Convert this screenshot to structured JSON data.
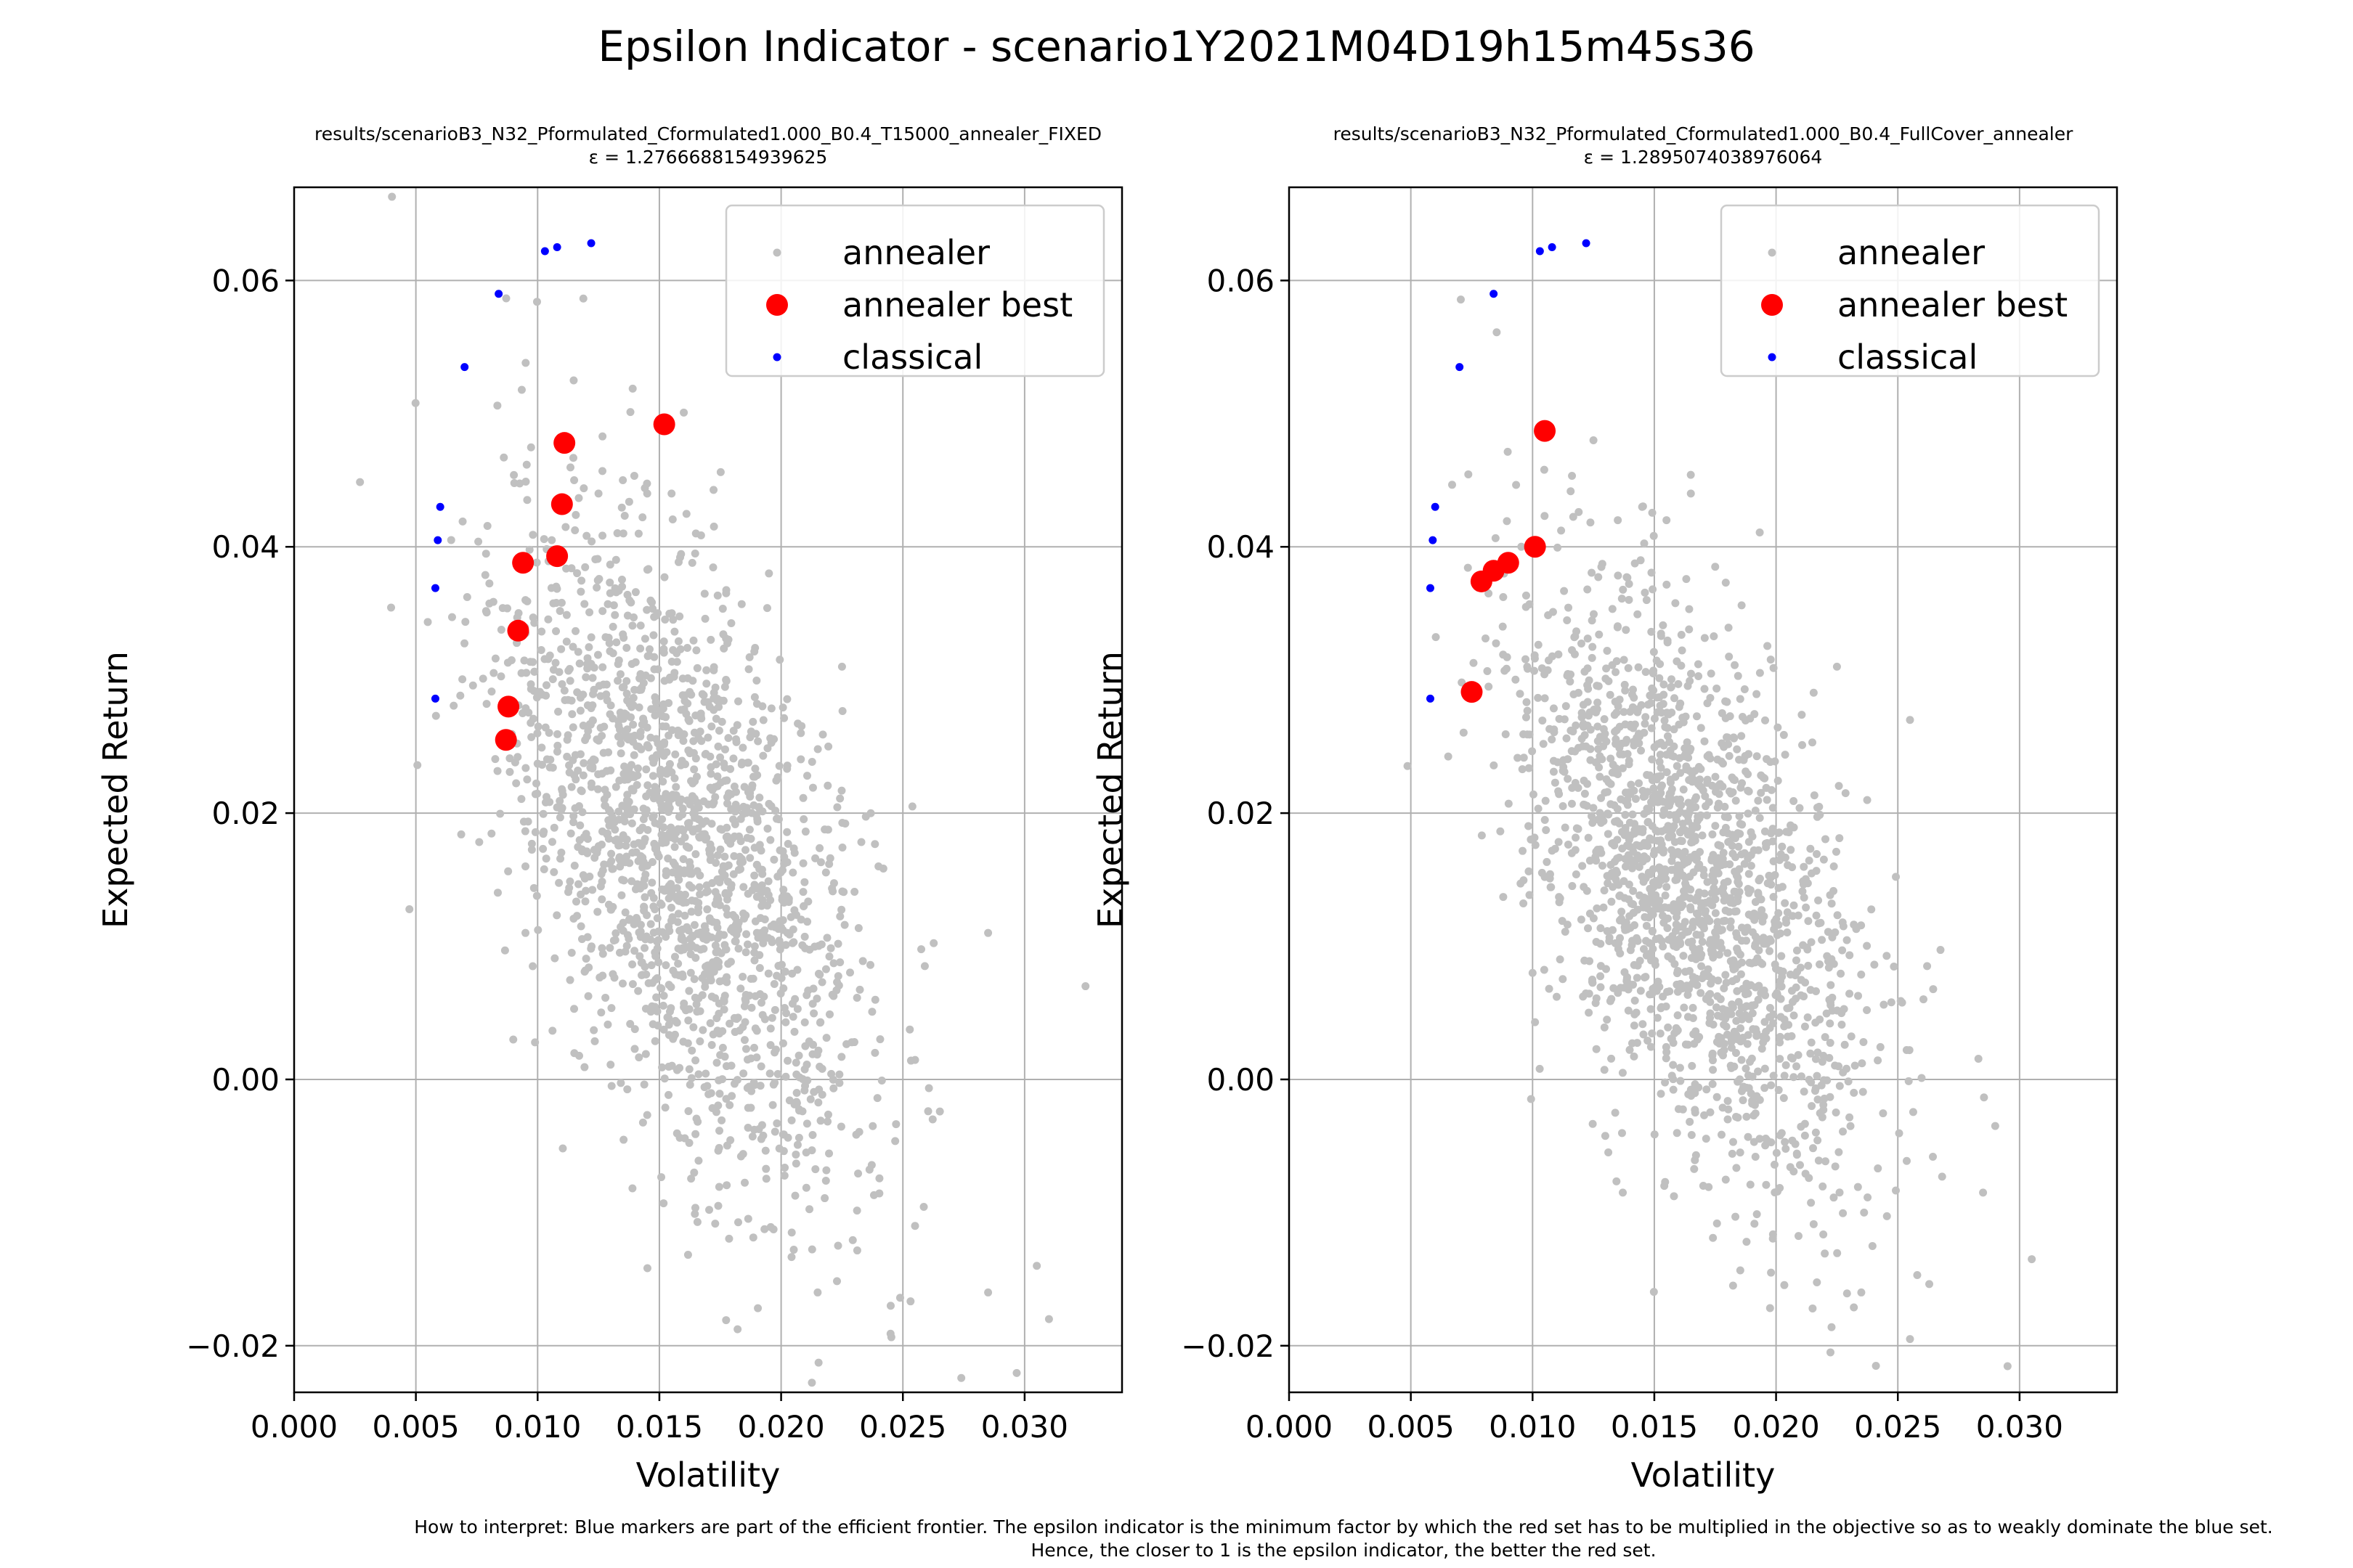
{
  "figure": {
    "title": "Epsilon Indicator - scenario1Y2021M04D19h15m45s36",
    "footnote_line1": "How to interpret: Blue markers are part of the efficient frontier. The epsilon indicator is the minimum factor by which the red set has to be multiplied in the objective so as to weakly dominate the blue set.",
    "footnote_line2": "Hence, the closer to 1 is the epsilon indicator, the better the red set."
  },
  "colors": {
    "annealer": "#c0c0c0",
    "annealer_best": "#ff0000",
    "classical": "#0000ff",
    "grid": "#b0b0b0"
  },
  "chart_data": [
    {
      "type": "scatter",
      "title": "results/scenarioB3_N32_Pformulated_Cformulated1.000_B0.4_T15000_annealer_FIXED",
      "subtitle": "ε = 1.2766688154939625",
      "xlabel": "Volatility",
      "ylabel": "Expected Return",
      "xlim": [
        0.0,
        0.034
      ],
      "ylim": [
        -0.0235,
        0.067
      ],
      "xticks": [
        "0.000",
        "0.005",
        "0.010",
        "0.015",
        "0.020",
        "0.025",
        "0.030"
      ],
      "yticks": [
        "−0.02",
        "0.00",
        "0.02",
        "0.04",
        "0.06"
      ],
      "grid": true,
      "legend_position": "top-right",
      "series": [
        {
          "name": "annealer",
          "cloud": {
            "center_x": 0.016,
            "center_y": 0.017,
            "sd_x": 0.0038,
            "sd_y": 0.0125,
            "correlation": -0.55,
            "count": 1800
          },
          "points": [
            [
              0.0115,
              0.045
            ],
            [
              0.0125,
              0.044
            ],
            [
              0.0135,
              0.045
            ],
            [
              0.0145,
              0.044
            ],
            [
              0.0155,
              0.044
            ],
            [
              0.0165,
              0.041
            ],
            [
              0.0195,
              0.038
            ],
            [
              0.0225,
              0.031
            ],
            [
              0.0325,
              0.007
            ],
            [
              0.031,
              -0.018
            ],
            [
              0.0305,
              -0.014
            ],
            [
              0.0285,
              -0.016
            ],
            [
              0.0285,
              0.011
            ],
            [
              0.0255,
              -0.011
            ],
            [
              0.0245,
              -0.017
            ],
            [
              0.0215,
              -0.016
            ],
            [
              0.0095,
              0.011
            ],
            [
              0.0095,
              0.016
            ],
            [
              0.0098,
              0.0085
            ],
            [
              0.0095,
              0.036
            ]
          ]
        },
        {
          "name": "annealer best",
          "points": [
            [
              0.0087,
              0.0255
            ],
            [
              0.0088,
              0.028
            ],
            [
              0.0092,
              0.0337
            ],
            [
              0.0094,
              0.0388
            ],
            [
              0.0108,
              0.0393
            ],
            [
              0.011,
              0.0432
            ],
            [
              0.0111,
              0.0478
            ],
            [
              0.0152,
              0.0492
            ]
          ]
        },
        {
          "name": "classical",
          "points": [
            [
              0.0058,
              0.0286
            ],
            [
              0.0058,
              0.0369
            ],
            [
              0.0059,
              0.0405
            ],
            [
              0.006,
              0.043
            ],
            [
              0.007,
              0.0535
            ],
            [
              0.0084,
              0.059
            ],
            [
              0.0103,
              0.0622
            ],
            [
              0.0108,
              0.0625
            ],
            [
              0.0122,
              0.0628
            ]
          ]
        }
      ]
    },
    {
      "type": "scatter",
      "title": "results/scenarioB3_N32_Pformulated_Cformulated1.000_B0.4_FullCover_annealer",
      "subtitle": "ε = 1.2895074038976064",
      "xlabel": "Volatility",
      "ylabel": "Expected Return",
      "xlim": [
        0.0,
        0.034
      ],
      "ylim": [
        -0.0235,
        0.067
      ],
      "xticks": [
        "0.000",
        "0.005",
        "0.010",
        "0.015",
        "0.020",
        "0.025",
        "0.030"
      ],
      "yticks": [
        "−0.02",
        "0.00",
        "0.02",
        "0.04",
        "0.06"
      ],
      "grid": true,
      "legend_position": "top-right",
      "series": [
        {
          "name": "annealer",
          "cloud": {
            "center_x": 0.0165,
            "center_y": 0.0145,
            "sd_x": 0.0036,
            "sd_y": 0.0115,
            "correlation": -0.55,
            "count": 1800
          },
          "points": [
            [
              0.0125,
              0.048
            ],
            [
              0.0145,
              0.043
            ],
            [
              0.0135,
              0.042
            ],
            [
              0.0155,
              0.042
            ],
            [
              0.0165,
              0.044
            ],
            [
              0.0175,
              0.0385
            ],
            [
              0.0225,
              0.031
            ],
            [
              0.0255,
              0.027
            ],
            [
              0.0305,
              -0.0135
            ],
            [
              0.029,
              -0.0035
            ],
            [
              0.0285,
              -0.0085
            ],
            [
              0.0255,
              -0.0195
            ],
            [
              0.0215,
              -0.0172
            ],
            [
              0.0235,
              -0.016
            ],
            [
              0.0101,
              0.0043
            ],
            [
              0.01,
              0.008
            ],
            [
              0.0105,
              0.0152
            ]
          ]
        },
        {
          "name": "annealer best",
          "points": [
            [
              0.0075,
              0.0291
            ],
            [
              0.0079,
              0.0374
            ],
            [
              0.0084,
              0.0382
            ],
            [
              0.009,
              0.0388
            ],
            [
              0.0101,
              0.04
            ],
            [
              0.0105,
              0.0487
            ]
          ]
        },
        {
          "name": "classical",
          "points": [
            [
              0.0058,
              0.0286
            ],
            [
              0.0058,
              0.0369
            ],
            [
              0.0059,
              0.0405
            ],
            [
              0.006,
              0.043
            ],
            [
              0.007,
              0.0535
            ],
            [
              0.0084,
              0.059
            ],
            [
              0.0103,
              0.0622
            ],
            [
              0.0108,
              0.0625
            ],
            [
              0.0122,
              0.0628
            ]
          ]
        }
      ]
    }
  ]
}
